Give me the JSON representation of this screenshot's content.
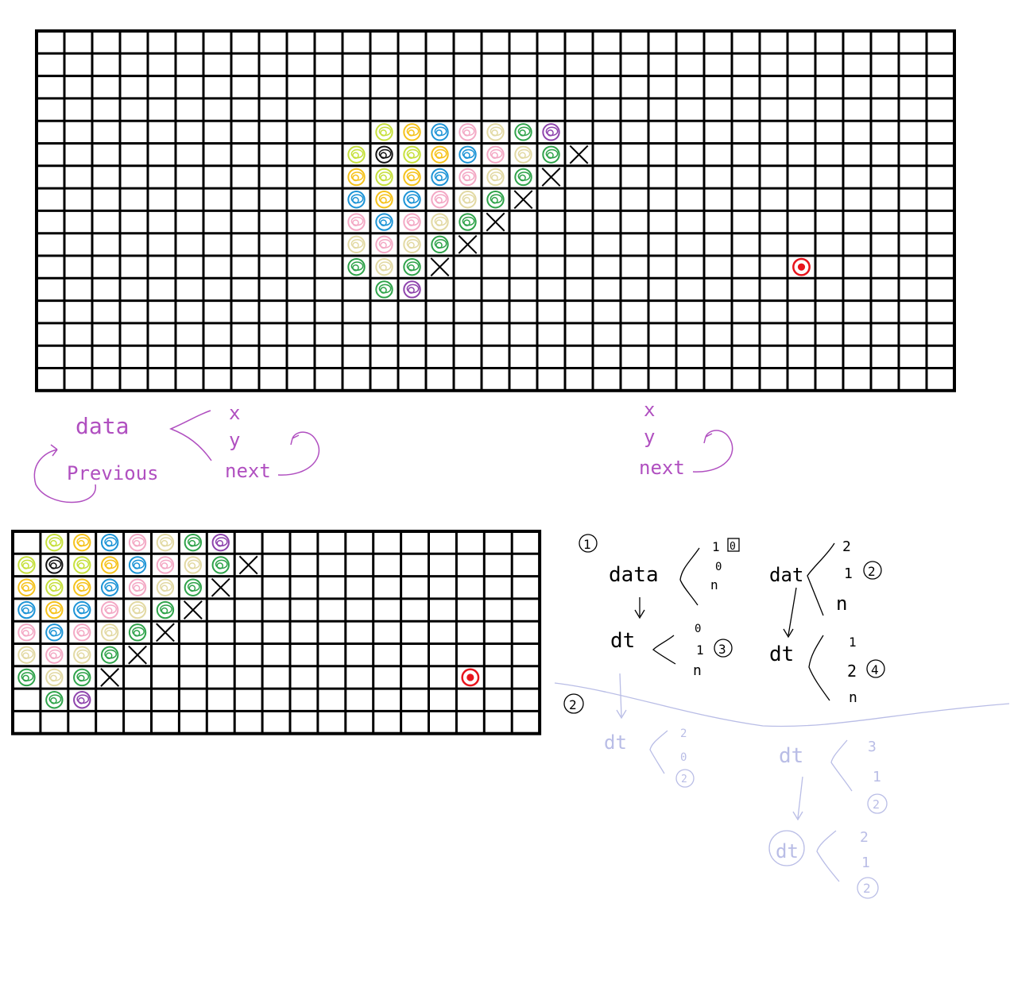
{
  "colors": {
    "grid": "#000000",
    "note_purple": "#b04fc0",
    "note_black": "#000000",
    "note_faded": "#b9bde6",
    "red_marker": "#e8141c"
  },
  "pieces": [
    {
      "c": 0,
      "r": 0,
      "color": "#c6e03b"
    },
    {
      "c": 1,
      "r": 0,
      "color": "#f5c21b"
    },
    {
      "c": 2,
      "r": 0,
      "color": "#1d94d6"
    },
    {
      "c": 3,
      "r": 0,
      "color": "#f3a8c4"
    },
    {
      "c": 4,
      "r": 0,
      "color": "#e2d9a3"
    },
    {
      "c": 5,
      "r": 0,
      "color": "#2fa34a"
    },
    {
      "c": 6,
      "r": 0,
      "color": "#8e44ad"
    },
    {
      "c": -1,
      "r": 1,
      "color": "#c6e03b"
    },
    {
      "c": 0,
      "r": 1,
      "color": "#111111"
    },
    {
      "c": 1,
      "r": 1,
      "color": "#c6e03b"
    },
    {
      "c": 2,
      "r": 1,
      "color": "#f5c21b"
    },
    {
      "c": 3,
      "r": 1,
      "color": "#1d94d6"
    },
    {
      "c": 4,
      "r": 1,
      "color": "#f3a8c4"
    },
    {
      "c": 5,
      "r": 1,
      "color": "#e2d9a3"
    },
    {
      "c": 6,
      "r": 1,
      "color": "#2fa34a"
    },
    {
      "c": -1,
      "r": 2,
      "color": "#f5c21b"
    },
    {
      "c": 0,
      "r": 2,
      "color": "#c6e03b"
    },
    {
      "c": 1,
      "r": 2,
      "color": "#f5c21b"
    },
    {
      "c": 2,
      "r": 2,
      "color": "#1d94d6"
    },
    {
      "c": 3,
      "r": 2,
      "color": "#f3a8c4"
    },
    {
      "c": 4,
      "r": 2,
      "color": "#e2d9a3"
    },
    {
      "c": 5,
      "r": 2,
      "color": "#2fa34a"
    },
    {
      "c": -1,
      "r": 3,
      "color": "#1d94d6"
    },
    {
      "c": 0,
      "r": 3,
      "color": "#f5c21b"
    },
    {
      "c": 1,
      "r": 3,
      "color": "#1d94d6"
    },
    {
      "c": 2,
      "r": 3,
      "color": "#f3a8c4"
    },
    {
      "c": 3,
      "r": 3,
      "color": "#e2d9a3"
    },
    {
      "c": 4,
      "r": 3,
      "color": "#2fa34a"
    },
    {
      "c": -1,
      "r": 4,
      "color": "#f3a8c4"
    },
    {
      "c": 0,
      "r": 4,
      "color": "#1d94d6"
    },
    {
      "c": 1,
      "r": 4,
      "color": "#f3a8c4"
    },
    {
      "c": 2,
      "r": 4,
      "color": "#e2d9a3"
    },
    {
      "c": 3,
      "r": 4,
      "color": "#2fa34a"
    },
    {
      "c": -1,
      "r": 5,
      "color": "#e2d9a3"
    },
    {
      "c": 0,
      "r": 5,
      "color": "#f3a8c4"
    },
    {
      "c": 1,
      "r": 5,
      "color": "#e2d9a3"
    },
    {
      "c": 2,
      "r": 5,
      "color": "#2fa34a"
    },
    {
      "c": -1,
      "r": 6,
      "color": "#2fa34a"
    },
    {
      "c": 0,
      "r": 6,
      "color": "#e2d9a3"
    },
    {
      "c": 1,
      "r": 6,
      "color": "#2fa34a"
    },
    {
      "c": 0,
      "r": 7,
      "color": "#2fa34a"
    },
    {
      "c": 1,
      "r": 7,
      "color": "#8e44ad"
    }
  ],
  "crosses": [
    {
      "c": 7,
      "r": 1
    },
    {
      "c": 6,
      "r": 2
    },
    {
      "c": 5,
      "r": 3
    },
    {
      "c": 4,
      "r": 4
    },
    {
      "c": 3,
      "r": 5
    },
    {
      "c": 2,
      "r": 6
    }
  ],
  "notes": {
    "struct1": {
      "data": "data",
      "x": "x",
      "y": "y",
      "next": "next",
      "previous": "Previous"
    },
    "struct2": {
      "x": "x",
      "y": "y",
      "next": "next"
    },
    "step1": {
      "label": "1",
      "a_name": "data",
      "a_vals": [
        "1",
        "0",
        "n"
      ],
      "a_tag": "0",
      "b_name": "dt",
      "b_vals": [
        "0",
        "1",
        "n"
      ],
      "b_tag": "3",
      "c_name": "dat",
      "c_vals": [
        "2",
        "1",
        "n"
      ],
      "c_tag": "2",
      "d_name": "dt",
      "d_vals": [
        "1",
        "2",
        "n"
      ],
      "d_tag": "4"
    },
    "step2": {
      "label": "2",
      "a_name": "dt",
      "a_vals": [
        "2",
        "0",
        "2"
      ],
      "b_name": "dt",
      "b_vals": [
        "3",
        "1",
        "2"
      ],
      "c_name": "dt",
      "c_vals": [
        "2",
        "1",
        "2"
      ]
    }
  }
}
